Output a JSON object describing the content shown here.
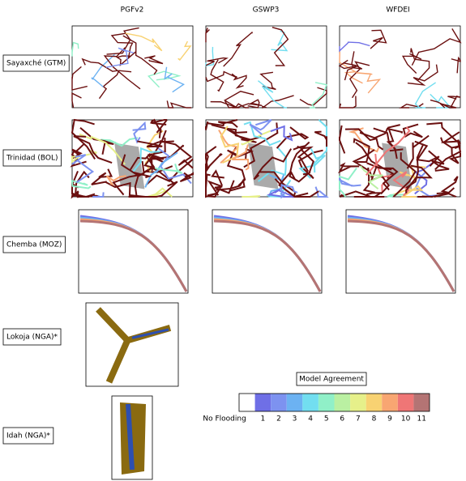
{
  "columns": [
    "PGFv2",
    "GSWP3",
    "WFDEI"
  ],
  "rows": [
    "Sayaxché (GTM)",
    "Trinidad (BOL)",
    "Chemba (MOZ)",
    "Lokoja (NGA)*",
    "Idah (NGA)*"
  ],
  "legend": {
    "title": "Model Agreement",
    "labels": [
      "No Flooding",
      1,
      2,
      3,
      4,
      5,
      6,
      7,
      8,
      9,
      10,
      11
    ],
    "colors": [
      "#ffffff",
      "#6f6fe6",
      "#7d92f0",
      "#6cb2f2",
      "#72def0",
      "#90f0c8",
      "#baf0a2",
      "#e6f08a",
      "#f8d272",
      "#f8a672",
      "#ef7676",
      "#b47474"
    ]
  }
}
